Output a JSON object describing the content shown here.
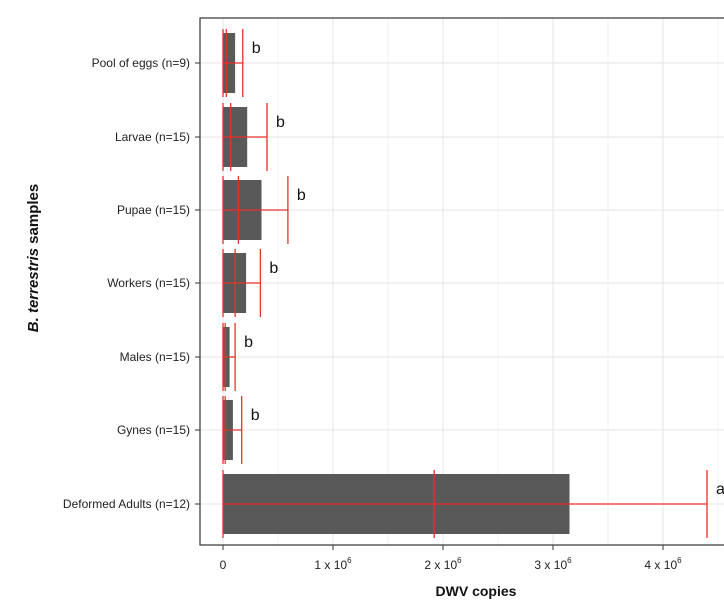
{
  "chart_data": {
    "type": "bar",
    "orientation": "horizontal",
    "categories": [
      "Pool of eggs (n=9)",
      "Larvae (n=15)",
      "Pupae (n=15)",
      "Workers (n=15)",
      "Males (n=15)",
      "Gynes (n=15)",
      "Deformed Adults (n=12)"
    ],
    "series": [
      {
        "values": [
          110000,
          220000,
          350000,
          210000,
          60000,
          90000,
          3150000
        ],
        "median": [
          30000,
          70000,
          140000,
          110000,
          20000,
          20000,
          1920000
        ],
        "whisker_low": [
          0,
          0,
          0,
          0,
          0,
          0,
          0
        ],
        "whisker_high": [
          180000,
          400000,
          590000,
          340000,
          110000,
          170000,
          4400000
        ],
        "significance": [
          "b",
          "b",
          "b",
          "b",
          "b",
          "b",
          "a"
        ]
      }
    ],
    "xlabel": "DWV copies",
    "ylabel": "B. terrestris samples",
    "ylabel_italic_part": "B. terrestris",
    "ylabel_rest": " samples",
    "xlim": [
      -200000,
      4500000
    ],
    "xticks": [
      {
        "value": 0,
        "label": "0"
      },
      {
        "value": 1000000,
        "label": "1 x 10",
        "exp": "6"
      },
      {
        "value": 2000000,
        "label": "2 x 10",
        "exp": "6"
      },
      {
        "value": 3000000,
        "label": "3 x 10",
        "exp": "6"
      },
      {
        "value": 4000000,
        "label": "4 x 10",
        "exp": "6"
      }
    ],
    "grid": true,
    "colors": {
      "bar": "#595959",
      "errorbar": "#e8302a",
      "grid": "#e6e6e6",
      "panel_border": "#333333"
    }
  }
}
